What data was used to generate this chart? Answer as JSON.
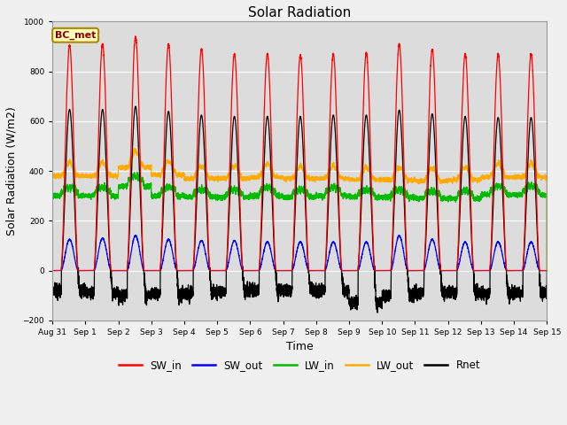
{
  "title": "Solar Radiation",
  "xlabel": "Time",
  "ylabel": "Solar Radiation (W/m2)",
  "ylim": [
    -200,
    1000
  ],
  "plot_bg_color": "#dcdcdc",
  "fig_bg_color": "#f0f0f0",
  "annotation_text": "BC_met",
  "legend_entries": [
    "SW_in",
    "SW_out",
    "LW_in",
    "LW_out",
    "Rnet"
  ],
  "legend_colors": [
    "#ff0000",
    "#0000ff",
    "#00bb00",
    "#ffaa00",
    "#000000"
  ],
  "x_tick_labels": [
    "Aug 31",
    "Sep 1",
    "Sep 2",
    "Sep 3",
    "Sep 4",
    "Sep 5",
    "Sep 6",
    "Sep 7",
    "Sep 8",
    "Sep 9",
    "Sep 10",
    "Sep 11",
    "Sep 12",
    "Sep 13",
    "Sep 14",
    "Sep 15"
  ],
  "num_days": 15,
  "points_per_day": 480,
  "SW_in_peak": [
    905,
    910,
    940,
    910,
    890,
    870,
    870,
    865,
    870,
    875,
    910,
    890,
    870,
    870,
    870
  ],
  "SW_out_peak": [
    125,
    130,
    140,
    125,
    120,
    120,
    115,
    115,
    115,
    115,
    140,
    125,
    115,
    115,
    115
  ],
  "LW_in_base": [
    300,
    300,
    340,
    300,
    295,
    295,
    300,
    295,
    300,
    295,
    295,
    290,
    290,
    305,
    305
  ],
  "LW_in_amp": [
    35,
    35,
    40,
    35,
    30,
    30,
    35,
    30,
    35,
    30,
    30,
    30,
    30,
    35,
    35
  ],
  "LW_out_base": [
    380,
    380,
    415,
    385,
    370,
    370,
    375,
    370,
    370,
    365,
    365,
    360,
    365,
    375,
    375
  ],
  "LW_out_amp": [
    55,
    55,
    65,
    55,
    50,
    50,
    55,
    50,
    50,
    50,
    50,
    50,
    50,
    55,
    55
  ],
  "Rnet_peak": [
    648,
    648,
    660,
    640,
    625,
    620,
    620,
    620,
    625,
    625,
    645,
    630,
    620,
    615,
    615
  ],
  "Rnet_night": [
    -80,
    -90,
    -100,
    -95,
    -90,
    -85,
    -80,
    -80,
    -80,
    -130,
    -100,
    -90,
    -90,
    -90,
    -90
  ],
  "sunrise_hour": 6.2,
  "sunset_hour": 18.8,
  "peak_hour": 12.5
}
